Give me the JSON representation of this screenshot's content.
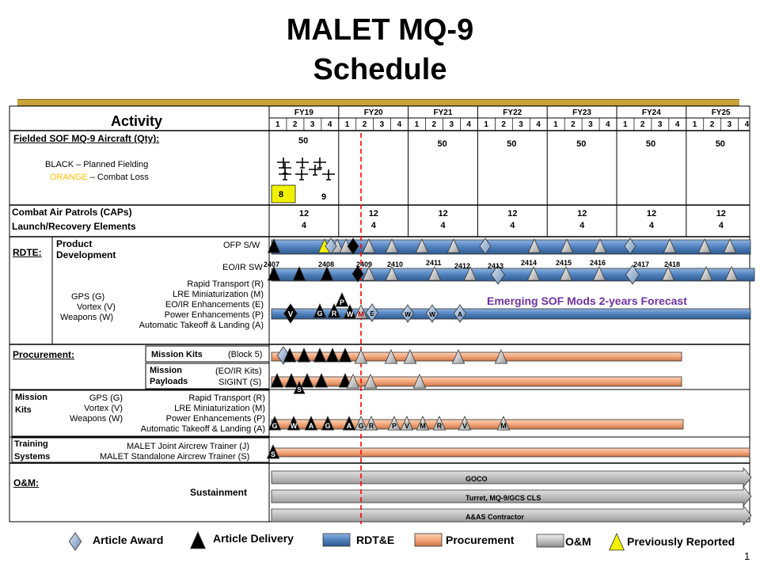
{
  "title": {
    "line1": "MALET MQ-9",
    "line2": "Schedule"
  },
  "header": {
    "activity_label": "Activity",
    "fiscal_years": [
      "FY19",
      "FY20",
      "FY21",
      "FY22",
      "FY23",
      "FY24",
      "FY25"
    ],
    "quarters": [
      "1",
      "2",
      "3",
      "4"
    ]
  },
  "fielded": {
    "label": "Fielded SOF MQ-9 Aircraft (Qty):",
    "black_legend": "BLACK – Planned Fielding",
    "orange_word": "ORANGE",
    "orange_rest": "– Combat Loss",
    "qty_fy19": "50",
    "qty_other": [
      "50",
      "50",
      "50",
      "50",
      "50"
    ],
    "box_value": "8",
    "after_value": "9"
  },
  "caps": {
    "line1": "Combat Air Patrols (CAPs)",
    "line2": "Launch/Recovery Elements",
    "values": [
      {
        "caps": "12",
        "lre": "4"
      },
      {
        "caps": "12",
        "lre": "4"
      },
      {
        "caps": "12",
        "lre": "4"
      },
      {
        "caps": "12",
        "lre": "4"
      },
      {
        "caps": "12",
        "lre": "4"
      },
      {
        "caps": "12",
        "lre": "4"
      },
      {
        "caps": "12",
        "lre": "4"
      }
    ]
  },
  "rdte": {
    "label": "RDTE:",
    "product_dev_1": "Product",
    "product_dev_2": "Development",
    "ofp": "OFP S/W",
    "eoir": "EO/IR SW",
    "releases": [
      "2407",
      "2408",
      "2409",
      "2410",
      "2411",
      "2412",
      "2413",
      "2414",
      "2415",
      "2416",
      "2417",
      "2418"
    ],
    "mods_left": [
      "GPS (G)",
      "Vortex (V)",
      "Weapons (W)"
    ],
    "mods_right": [
      "Rapid Transport (R)",
      "LRE Miniaturization (M)",
      "EO/IR Enhancements (E)",
      "Power Enhancements (P)",
      "Automatic Takeoff & Landing (A)"
    ],
    "forecast": "Emerging SOF Mods 2-years Forecast",
    "milestone_letters": [
      "V",
      "G",
      "R",
      "P",
      "W",
      "M",
      "E",
      "W",
      "W",
      "A"
    ]
  },
  "procurement": {
    "label": "Procurement:",
    "mission_kits": "Mission Kits",
    "block": "(Block 5)",
    "payloads_1": "Mission",
    "payloads_2": "Payloads",
    "eoir_kits": "(EO/IR Kits)",
    "sigint": "SIGINT (S)",
    "s_letter": "S"
  },
  "mission_kits": {
    "label_1": "Mission",
    "label_2": "Kits",
    "left": [
      "GPS (G)",
      "Vortex (V)",
      "Weapons (W)"
    ],
    "right": [
      "Rapid Transport (R)",
      "LRE Miniaturization (M)",
      "Power Enhancements (P)",
      "Automatic Takeoff & Landing (A)"
    ],
    "letters": [
      "G",
      "W",
      "A",
      "G",
      "A",
      "G",
      "R",
      "P",
      "V",
      "M",
      "R",
      "V",
      "M"
    ]
  },
  "training": {
    "label_1": "Training",
    "label_2": "Systems",
    "joint": "MALET Joint Aircrew Trainer (J)",
    "standalone": "MALET Standalone Aircrew Trainer (S)",
    "letter": "S"
  },
  "om": {
    "label": "O&M:",
    "sustainment": "Sustainment",
    "bars": [
      "GOCO",
      "Turret, MQ-9/GCS CLS",
      "A&AS Contractor"
    ]
  },
  "legend": {
    "article_award": "Article Award",
    "article_delivery": "Article Delivery",
    "rdte": "RDT&E",
    "procurement": "Procurement",
    "om": "O&M",
    "previously_reported": "Previously Reported"
  },
  "page_number": "1",
  "colors": {
    "rdte_bar": "#4f81bd",
    "procurement_bar": "#f4a67a",
    "om_bar": "#c0c0c0",
    "gold": "#c9a23a",
    "forecast": "#7030a0",
    "orange": "#ffc000",
    "yellow": "#f2f200",
    "status_line": "#ff0000"
  }
}
